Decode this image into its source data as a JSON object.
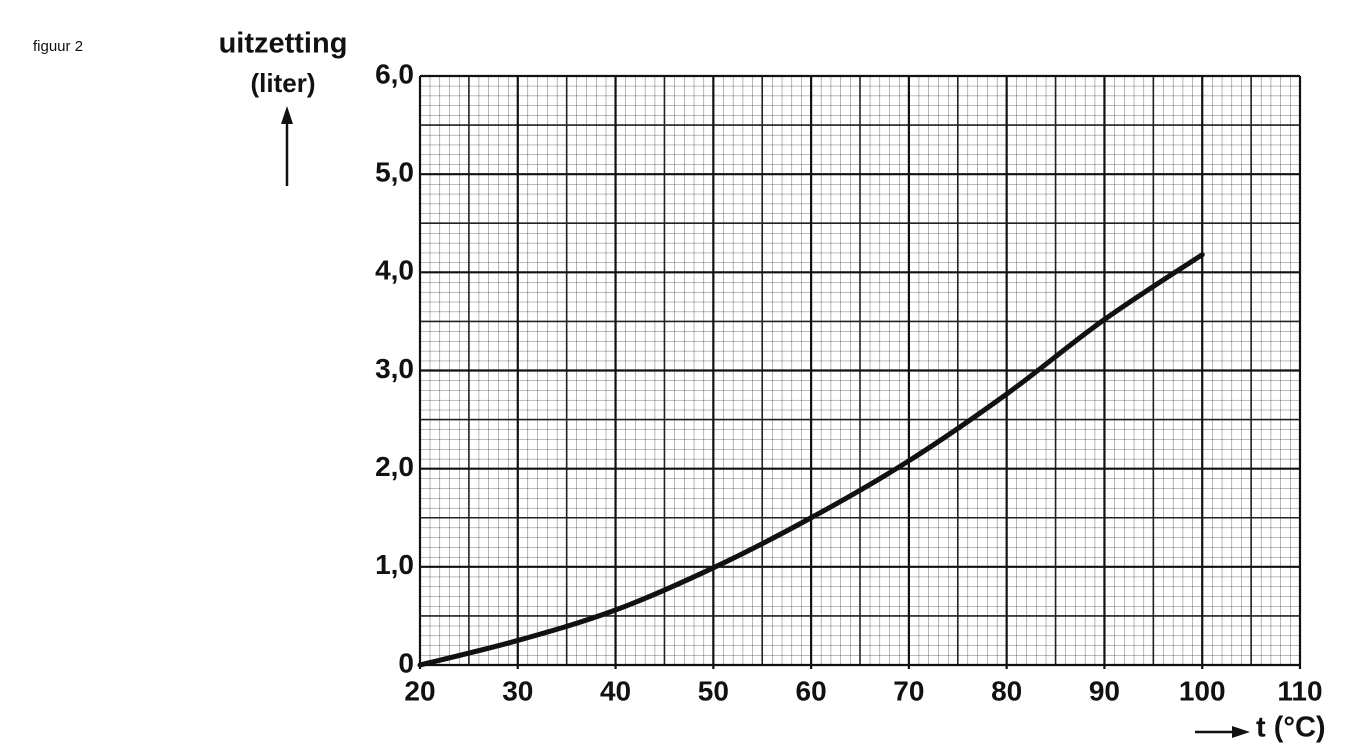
{
  "chart_data": {
    "type": "line",
    "figure_label": "figuur 2",
    "y_label": "uitzetting",
    "y_unit": "(liter)",
    "x_label": "t (°C)",
    "x": [
      20,
      30,
      40,
      50,
      60,
      70,
      80,
      90,
      100
    ],
    "values": [
      0,
      0.25,
      0.56,
      0.99,
      1.5,
      2.08,
      2.76,
      3.52,
      4.18
    ],
    "color": "#111111",
    "xlim": [
      20,
      110
    ],
    "xticks": [
      20,
      30,
      40,
      50,
      60,
      70,
      80,
      90,
      100,
      110
    ],
    "ylim": [
      0,
      6
    ],
    "yticks": [
      0,
      {
        "value": 1,
        "label": "1,0"
      },
      {
        "value": 2,
        "label": "2,0"
      },
      {
        "value": 3,
        "label": "3,0"
      },
      {
        "value": 4,
        "label": "4,0"
      },
      {
        "value": 5,
        "label": "5,0"
      },
      {
        "value": 6,
        "label": "6,0"
      }
    ],
    "grid": true
  }
}
